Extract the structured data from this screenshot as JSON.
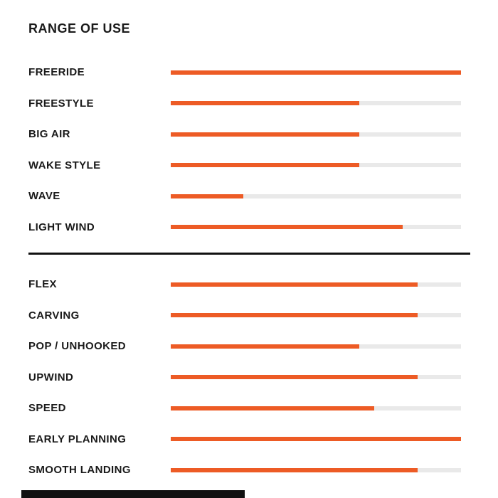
{
  "page": {
    "title": "RANGE OF USE"
  },
  "colors": {
    "bar_fill": "#ed5b25",
    "bar_track": "#e9e9e9",
    "text": "#1a1a1a",
    "divider": "#111111"
  },
  "chart_data": {
    "type": "bar",
    "orientation": "horizontal",
    "title": "RANGE OF USE",
    "value_unit": "percent",
    "value_range": [
      0,
      100
    ],
    "grid": false,
    "legend": false,
    "sections": [
      {
        "rows": [
          {
            "label": "FREERIDE",
            "value": 100
          },
          {
            "label": "FREESTYLE",
            "value": 65
          },
          {
            "label": "BIG AIR",
            "value": 65
          },
          {
            "label": "WAKE STYLE",
            "value": 65
          },
          {
            "label": "WAVE",
            "value": 25
          },
          {
            "label": "LIGHT WIND",
            "value": 80
          }
        ]
      },
      {
        "rows": [
          {
            "label": "FLEX",
            "value": 85
          },
          {
            "label": "CARVING",
            "value": 85
          },
          {
            "label": "POP / UNHOOKED",
            "value": 65
          },
          {
            "label": "UPWIND",
            "value": 85
          },
          {
            "label": "SPEED",
            "value": 70
          },
          {
            "label": "EARLY PLANNING",
            "value": 100
          },
          {
            "label": "SMOOTH LANDING",
            "value": 85
          }
        ]
      }
    ]
  }
}
